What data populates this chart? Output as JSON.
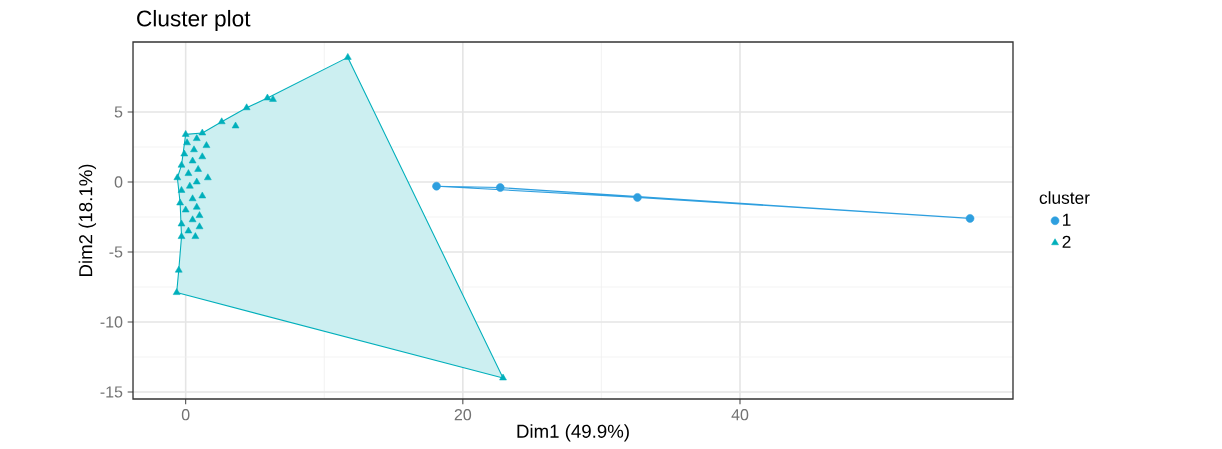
{
  "chart_data": {
    "type": "scatter",
    "title": "Cluster plot",
    "xlabel": "Dim1 (49.9%)",
    "ylabel": "Dim2 (18.1%)",
    "legend_title": "cluster",
    "xlim": [
      -3.8,
      59.7
    ],
    "ylim": [
      -15.5,
      10
    ],
    "xticks": [
      0,
      20,
      40
    ],
    "yticks": [
      -15,
      -10,
      -5,
      0,
      5
    ],
    "grid": true,
    "legend": "right",
    "series": [
      {
        "type": "area",
        "color": "#2e9fdf",
        "x": [
          18.1,
          22.7,
          56.6,
          32.6
        ],
        "values": [
          -0.3,
          -0.4,
          -2.6,
          -1.1
        ]
      },
      {
        "type": "area",
        "color": "#00afbb",
        "x": [
          -0.65,
          22.9,
          11.7,
          5.9,
          4.4,
          2.6,
          1.2,
          0.0,
          -0.3,
          -0.6,
          -0.4,
          -0.3,
          -0.5
        ],
        "values": [
          -7.9,
          -14.0,
          8.9,
          6.0,
          5.3,
          4.3,
          3.5,
          3.4,
          1.2,
          0.3,
          -1.5,
          -3.9,
          -6.3
        ]
      },
      {
        "name": "1",
        "color": "#2e9fdf",
        "marker": "circle",
        "x": [
          18.1,
          22.7,
          32.6,
          56.6
        ],
        "values": [
          -0.3,
          -0.4,
          -1.1,
          -2.6
        ]
      },
      {
        "name": "2",
        "color": "#00afbb",
        "marker": "triangle",
        "x": [
          -0.65,
          -0.5,
          -0.3,
          0.7,
          0.2,
          1.0,
          -0.3,
          0.5,
          1.0,
          0.0,
          0.8,
          -0.4,
          0.5,
          1.2,
          -0.3,
          0.3,
          0.8,
          -0.6,
          1.6,
          0.2,
          0.9,
          -0.3,
          0.5,
          1.2,
          -0.1,
          0.6,
          1.5,
          0.1,
          0.8,
          1.2,
          0.0,
          2.6,
          3.6,
          4.4,
          5.9,
          6.3,
          11.7,
          22.9
        ],
        "values": [
          -7.9,
          -6.3,
          -3.9,
          -3.9,
          -3.5,
          -3.2,
          -3.0,
          -2.7,
          -2.4,
          -2.0,
          -1.8,
          -1.5,
          -1.2,
          -1.0,
          -0.6,
          -0.3,
          0.0,
          0.3,
          0.3,
          0.6,
          0.9,
          1.2,
          1.5,
          1.8,
          2.0,
          2.3,
          2.6,
          2.8,
          3.1,
          3.5,
          3.4,
          4.3,
          4.0,
          5.3,
          6.0,
          5.9,
          8.9,
          -14.0
        ]
      }
    ]
  }
}
